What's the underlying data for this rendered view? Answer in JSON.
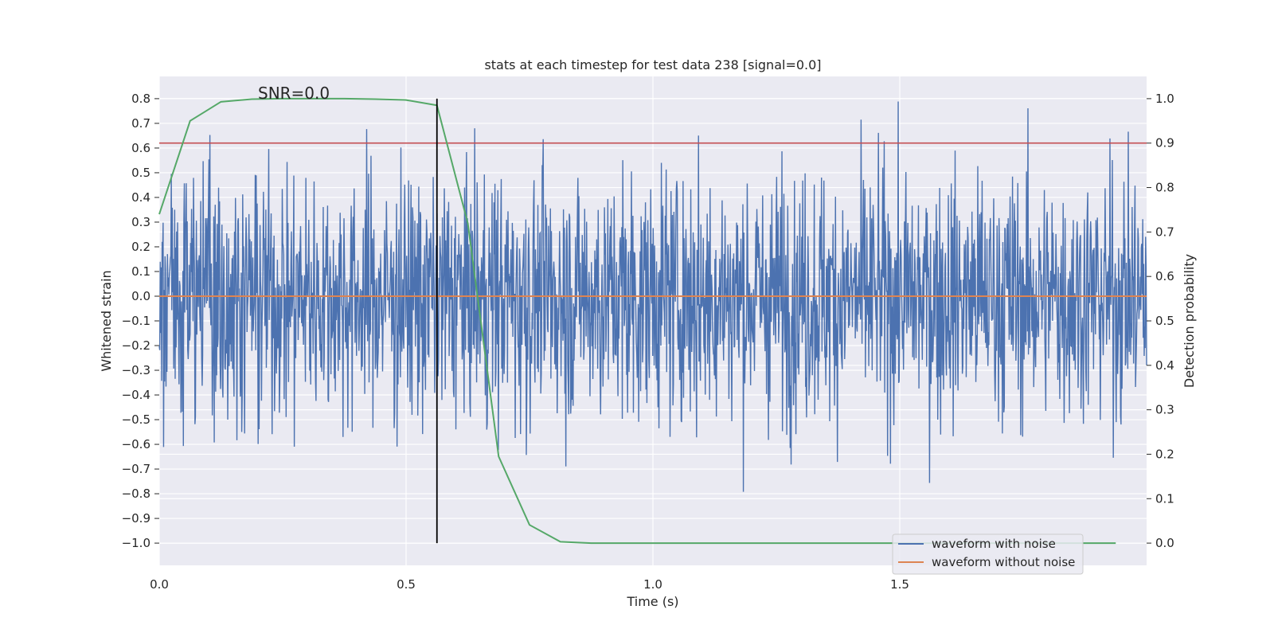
{
  "chart_data": {
    "type": "line",
    "title": "stats at each timestep for test data 238 [signal=0.0]",
    "xlabel": "Time (s)",
    "ylabel_left": "Whitened strain",
    "ylabel_right": "Detection probability",
    "xlim": [
      0.0,
      2.0
    ],
    "ylim_left": [
      -1.09,
      0.89
    ],
    "ylim_right": [
      -0.05,
      1.05
    ],
    "x_ticks": [
      0.0,
      0.5,
      1.0,
      1.5
    ],
    "x_tick_labels": [
      "0.0",
      "0.5",
      "1.0",
      "1.5"
    ],
    "y_left_ticks": [
      0.8,
      0.7,
      0.6,
      0.5,
      0.4,
      0.3,
      0.2,
      0.1,
      0.0,
      -0.1,
      -0.2,
      -0.3,
      -0.4,
      -0.5,
      -0.6,
      -0.7,
      -0.8,
      -0.9,
      -1.0
    ],
    "y_left_tick_labels": [
      "0.8",
      "0.7",
      "0.6",
      "0.5",
      "0.4",
      "0.3",
      "0.2",
      "0.1",
      "0.0",
      "−0.1",
      "−0.2",
      "−0.3",
      "−0.4",
      "−0.5",
      "−0.6",
      "−0.7",
      "−0.8",
      "−0.9",
      "−1.0"
    ],
    "y_right_ticks": [
      1.0,
      0.9,
      0.8,
      0.7,
      0.6,
      0.5,
      0.4,
      0.3,
      0.2,
      0.1,
      0.0
    ],
    "y_right_tick_labels": [
      "1.0",
      "0.9",
      "0.8",
      "0.7",
      "0.6",
      "0.5",
      "0.4",
      "0.3",
      "0.2",
      "0.1",
      "0.0"
    ],
    "annotation": "SNR=0.0",
    "annotation_x": 0.2,
    "annotation_y": 0.8,
    "noise_series": {
      "name": "waveform with noise",
      "color": "#4c72b0",
      "x_range": [
        0.0,
        2.0
      ],
      "n_points": 2048,
      "amplitude_std": 0.25,
      "clip": [
        -1.0,
        0.8
      ],
      "note": "dense random noise trace"
    },
    "clean_series": {
      "name": "waveform without noise",
      "color": "#dd8452",
      "x": [
        0.0,
        2.0
      ],
      "y": [
        0.0,
        0.0
      ]
    },
    "probability_series": {
      "name": "detection probability",
      "color": "#55a868",
      "x": [
        0.0,
        0.0625,
        0.125,
        0.1875,
        0.25,
        0.3125,
        0.375,
        0.4375,
        0.5,
        0.5625,
        0.625,
        0.6875,
        0.75,
        0.8125,
        0.875,
        0.9375,
        1.0,
        1.0625,
        1.125,
        1.1875,
        1.25,
        1.3125,
        1.375,
        1.4375,
        1.5,
        1.5625,
        1.625,
        1.6875,
        1.75,
        1.8125,
        1.875,
        1.9375
      ],
      "y": [
        0.74,
        0.95,
        0.993,
        0.999,
        1.0,
        1.0,
        1.0,
        0.999,
        0.997,
        0.985,
        0.72,
        0.195,
        0.041,
        0.003,
        0.0,
        0.0,
        0.0,
        0.0,
        0.0,
        0.0,
        0.0,
        0.0,
        0.0,
        0.0,
        0.0,
        0.0,
        0.0,
        0.0,
        0.0,
        0.0,
        0.0,
        0.0
      ]
    },
    "threshold": {
      "value": 0.9,
      "axis": "right",
      "color": "#c44e52"
    },
    "vertical_line": {
      "x": 0.5625,
      "color": "#000000"
    },
    "legend": {
      "position": "lower-right",
      "entries": [
        {
          "label": "waveform with noise",
          "color": "#4c72b0"
        },
        {
          "label": "waveform without noise",
          "color": "#dd8452"
        }
      ]
    },
    "grid": true,
    "colors": {
      "plot_bg": "#eaeaf2",
      "grid": "#ffffff"
    }
  }
}
